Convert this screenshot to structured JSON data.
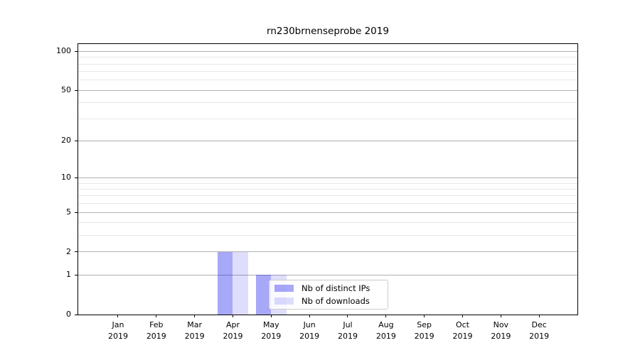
{
  "chart_data": {
    "type": "bar",
    "title": "rn230brnenseprobe 2019",
    "months": [
      "Jan",
      "Feb",
      "Mar",
      "Apr",
      "May",
      "Jun",
      "Jul",
      "Aug",
      "Sep",
      "Oct",
      "Nov",
      "Dec"
    ],
    "year_label": "2019",
    "categories": [
      "Jan 2019",
      "Feb 2019",
      "Mar 2019",
      "Apr 2019",
      "May 2019",
      "Jun 2019",
      "Jul 2019",
      "Aug 2019",
      "Sep 2019",
      "Oct 2019",
      "Nov 2019",
      "Dec 2019"
    ],
    "series": [
      {
        "name": "Nb of distinct IPs",
        "color": "rgba(0,0,235,0.34)",
        "values": [
          0,
          0,
          0,
          2,
          1,
          0,
          0,
          0,
          0,
          0,
          0,
          0
        ]
      },
      {
        "name": "Nb of downloads",
        "color": "rgba(0,0,235,0.13)",
        "values": [
          0,
          0,
          0,
          2,
          1,
          0,
          0,
          0,
          0,
          0,
          0,
          0
        ]
      }
    ],
    "y_scale": "log10(y+1)",
    "y_major_ticks": [
      0,
      1,
      2,
      5,
      10,
      20,
      50,
      100
    ],
    "y_minor_gridlines": [
      3,
      4,
      6,
      7,
      8,
      9,
      30,
      40,
      60,
      70,
      80,
      90
    ],
    "ylim": [
      0,
      113
    ],
    "xlabel": "",
    "ylabel": "",
    "grid": "horizontal only",
    "legend_position": "lower center",
    "colors": {
      "grid_major": "#b0b0b0",
      "grid_minor": "#e7e7e7",
      "spine": "#000000",
      "background": "#ffffff",
      "text": "#000000"
    }
  }
}
